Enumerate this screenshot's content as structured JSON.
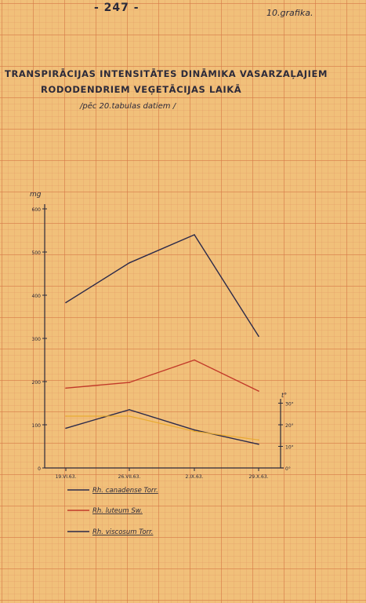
{
  "header": {
    "page_number": "- 247 -",
    "graph_number": "10.grafika."
  },
  "chart_data": {
    "type": "line",
    "title": "TRANSPIRĀCIJAS INTENSITĀTES DINĀMIKA VASARZAĻAJIEM",
    "title_line_2": "RODODENDRIEM VEĢETĀCIJAS LAIKĀ",
    "subtitle": "/pēc 20.tabulas datiem /",
    "ylabel": "mg",
    "y2label": "t°",
    "categories": [
      "19.VI.63.",
      "26.VII.63.",
      "2.IX.63.",
      "29.X.63."
    ],
    "ylim": [
      0,
      600
    ],
    "yticks": [
      "0",
      "100",
      "200",
      "300",
      "400",
      "500",
      "600"
    ],
    "y2lim": [
      0,
      30
    ],
    "y2ticks": [
      "0°",
      "10°",
      "20°",
      "30°"
    ],
    "series": [
      {
        "name": "Rh. canadense Torr.",
        "color": "#2c2a4a",
        "values": [
          383,
          475,
          540,
          305
        ]
      },
      {
        "name": "Rh. luteum Sw.",
        "color": "#c23a2a",
        "values": [
          185,
          198,
          250,
          178
        ]
      },
      {
        "name": "Rh. viscosum Torr.",
        "color": "#2c2a4a",
        "values": [
          92,
          135,
          88,
          55
        ]
      }
    ],
    "temperature": {
      "color": "#e8a82a",
      "values_deg": [
        24,
        24,
        17,
        13
      ]
    },
    "grid": true,
    "legend": "bottom-left"
  }
}
